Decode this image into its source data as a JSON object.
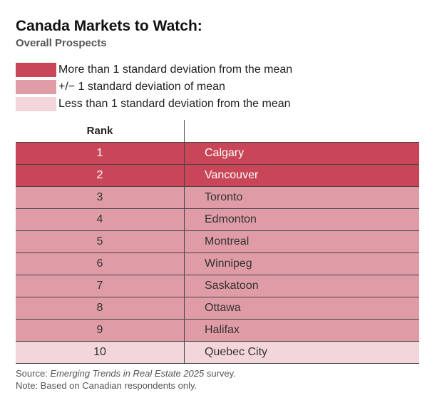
{
  "colors": {
    "more": "#c84657",
    "within": "#e09ca6",
    "less": "#f3d6da"
  },
  "chart_data": {
    "type": "table",
    "title": "Canada Markets to Watch:",
    "subtitle": "Overall Prospects",
    "legend": [
      {
        "key": "more",
        "label": "More than 1 standard deviation from the mean"
      },
      {
        "key": "within",
        "label": "+/− 1 standard deviation of mean"
      },
      {
        "key": "less",
        "label": "Less than 1 standard deviation from the mean"
      }
    ],
    "columns": [
      "Rank",
      ""
    ],
    "rows": [
      {
        "rank": "1",
        "market": "Calgary",
        "category": "more"
      },
      {
        "rank": "2",
        "market": "Vancouver",
        "category": "more"
      },
      {
        "rank": "3",
        "market": "Toronto",
        "category": "within"
      },
      {
        "rank": "4",
        "market": "Edmonton",
        "category": "within"
      },
      {
        "rank": "5",
        "market": "Montreal",
        "category": "within"
      },
      {
        "rank": "6",
        "market": "Winnipeg",
        "category": "within"
      },
      {
        "rank": "7",
        "market": "Saskatoon",
        "category": "within"
      },
      {
        "rank": "8",
        "market": "Ottawa",
        "category": "within"
      },
      {
        "rank": "9",
        "market": "Halifax",
        "category": "within"
      },
      {
        "rank": "10",
        "market": "Quebec City",
        "category": "less"
      }
    ]
  },
  "footnotes": {
    "source_prefix": "Source: ",
    "source_title": "Emerging Trends in Real Estate 2025",
    "source_suffix": " survey.",
    "note": "Note: Based on Canadian respondents only."
  }
}
